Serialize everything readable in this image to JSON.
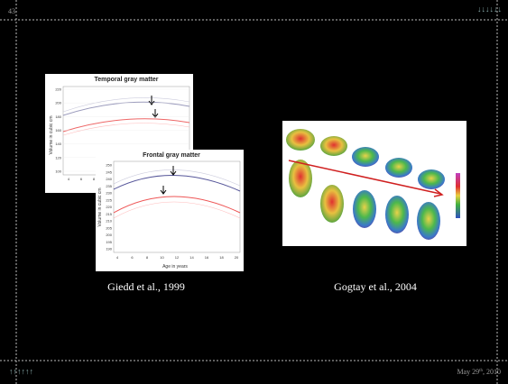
{
  "slide_number": "43",
  "nav_down": "↓↓↓↓↓↓",
  "nav_up": "↑↑↑↑↑↑",
  "date": {
    "text": "May 29",
    "sup": "th",
    "rest": ", 2010"
  },
  "figures": [
    {
      "caption": "Giedd et al., 1999",
      "charts": [
        {
          "title": "Temporal gray matter",
          "y_label": "Volume in cubic cm",
          "yticks": [
            "220",
            "200",
            "180",
            "160",
            "140",
            "120",
            "100"
          ],
          "xticks": [
            "4",
            "6",
            "8"
          ]
        },
        {
          "title": "Frontal gray matter",
          "y_label": "Volume in cubic cm",
          "x_label": "Age in years",
          "yticks": [
            "250",
            "245",
            "240",
            "235",
            "230",
            "225",
            "220",
            "215",
            "210",
            "205",
            "200",
            "195",
            "190"
          ],
          "xticks": [
            "4",
            "6",
            "8",
            "10",
            "12",
            "14",
            "16",
            "18",
            "20"
          ]
        }
      ]
    },
    {
      "caption": "Gogtay et al., 2004"
    }
  ]
}
